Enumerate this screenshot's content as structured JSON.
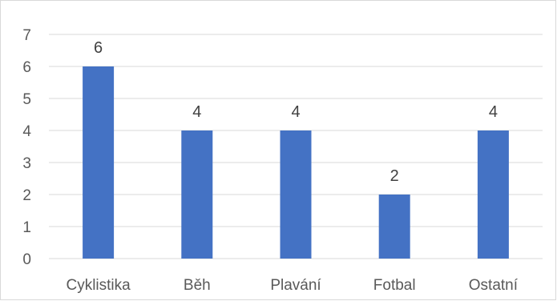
{
  "chart_data": {
    "type": "bar",
    "title": "",
    "xlabel": "",
    "ylabel": "",
    "categories": [
      "Cyklistika",
      "Běh",
      "Plavání",
      "Fotbal",
      "Ostatní"
    ],
    "values": [
      6,
      4,
      4,
      2,
      4
    ],
    "data_labels": [
      "6",
      "4",
      "4",
      "2",
      "4"
    ],
    "ylim": [
      0,
      7
    ],
    "yticks": [
      "0",
      "1",
      "2",
      "3",
      "4",
      "5",
      "6",
      "7"
    ],
    "grid": true,
    "legend": "none",
    "bar_color": "#4472c4"
  }
}
